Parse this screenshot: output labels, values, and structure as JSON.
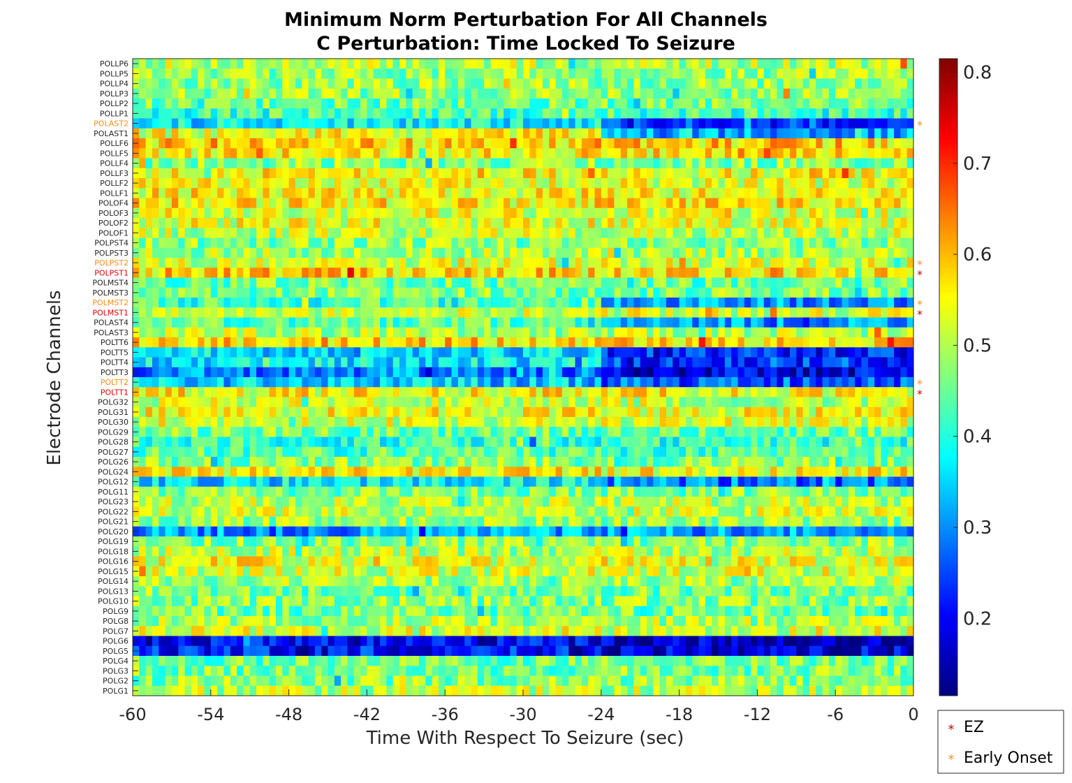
{
  "chart_data": {
    "type": "heatmap",
    "title": "Minimum Norm Perturbation For All Channels",
    "subtitle": "C Perturbation: Time Locked To Seizure",
    "xlabel": "Time With Respect To Seizure (sec)",
    "ylabel": "Electrode Channels",
    "xlim": [
      -60,
      0
    ],
    "x_ticks": [
      "-60",
      "-54",
      "-48",
      "-42",
      "-36",
      "-30",
      "-24",
      "-18",
      "-12",
      "-6",
      "0"
    ],
    "time_bins": 120,
    "colormap": "jet",
    "color_range": [
      0.115,
      0.815
    ],
    "colorbar_ticks": [
      "0.2",
      "0.3",
      "0.4",
      "0.5",
      "0.6",
      "0.7",
      "0.8"
    ],
    "colorbar_tick_values": [
      0.2,
      0.3,
      0.4,
      0.5,
      0.6,
      0.7,
      0.8
    ],
    "channels": [
      {
        "name": "POLLP6",
        "base": 0.5,
        "group": "normal"
      },
      {
        "name": "POLLP5",
        "base": 0.48,
        "group": "normal"
      },
      {
        "name": "POLLP4",
        "base": 0.48,
        "group": "normal"
      },
      {
        "name": "POLLP3",
        "base": 0.48,
        "group": "normal"
      },
      {
        "name": "POLLP2",
        "base": 0.45,
        "group": "normal"
      },
      {
        "name": "POLLP1",
        "base": 0.42,
        "group": "normal"
      },
      {
        "name": "POLAST2",
        "base": 0.37,
        "late": 0.24,
        "group": "early"
      },
      {
        "name": "POLAST1",
        "base": 0.54,
        "late": 0.32,
        "group": "normal"
      },
      {
        "name": "POLLF6",
        "base": 0.58,
        "group": "normal"
      },
      {
        "name": "POLLF5",
        "base": 0.56,
        "group": "normal"
      },
      {
        "name": "POLLF4",
        "base": 0.47,
        "group": "normal"
      },
      {
        "name": "POLLF3",
        "base": 0.55,
        "group": "normal"
      },
      {
        "name": "POLLF2",
        "base": 0.53,
        "group": "normal"
      },
      {
        "name": "POLLF1",
        "base": 0.55,
        "group": "normal"
      },
      {
        "name": "POLOF4",
        "base": 0.56,
        "group": "normal"
      },
      {
        "name": "POLOF3",
        "base": 0.53,
        "group": "normal"
      },
      {
        "name": "POLOF2",
        "base": 0.53,
        "group": "normal"
      },
      {
        "name": "POLOF1",
        "base": 0.51,
        "group": "normal"
      },
      {
        "name": "POLPST4",
        "base": 0.47,
        "group": "normal"
      },
      {
        "name": "POLPST3",
        "base": 0.49,
        "group": "normal"
      },
      {
        "name": "POLPST2",
        "base": 0.52,
        "group": "early"
      },
      {
        "name": "POLPST1",
        "base": 0.58,
        "group": "ez"
      },
      {
        "name": "POLMST4",
        "base": 0.45,
        "group": "normal"
      },
      {
        "name": "POLMST3",
        "base": 0.46,
        "group": "normal"
      },
      {
        "name": "POLMST2",
        "base": 0.42,
        "late": 0.31,
        "group": "early"
      },
      {
        "name": "POLMST1",
        "base": 0.52,
        "group": "ez"
      },
      {
        "name": "POLAST4",
        "base": 0.43,
        "late": 0.3,
        "group": "normal"
      },
      {
        "name": "POLAST3",
        "base": 0.5,
        "group": "normal"
      },
      {
        "name": "POLTT6",
        "base": 0.58,
        "group": "normal"
      },
      {
        "name": "POLTT5",
        "base": 0.35,
        "late": 0.22,
        "group": "normal"
      },
      {
        "name": "POLTT4",
        "base": 0.37,
        "late": 0.24,
        "group": "normal"
      },
      {
        "name": "POLTT3",
        "base": 0.29,
        "late": 0.18,
        "group": "normal"
      },
      {
        "name": "POLTT2",
        "base": 0.34,
        "late": 0.26,
        "group": "early"
      },
      {
        "name": "POLTT1",
        "base": 0.55,
        "group": "ez"
      },
      {
        "name": "POLG32",
        "base": 0.51,
        "group": "normal"
      },
      {
        "name": "POLG31",
        "base": 0.54,
        "group": "normal"
      },
      {
        "name": "POLG30",
        "base": 0.52,
        "group": "normal"
      },
      {
        "name": "POLG29",
        "base": 0.45,
        "group": "normal"
      },
      {
        "name": "POLG28",
        "base": 0.41,
        "group": "normal"
      },
      {
        "name": "POLG27",
        "base": 0.43,
        "group": "normal"
      },
      {
        "name": "POLG26",
        "base": 0.47,
        "group": "normal"
      },
      {
        "name": "POLG24",
        "base": 0.55,
        "group": "normal"
      },
      {
        "name": "POLG12",
        "base": 0.36,
        "late": 0.28,
        "group": "normal"
      },
      {
        "name": "POLG11",
        "base": 0.46,
        "group": "normal"
      },
      {
        "name": "POLG23",
        "base": 0.5,
        "group": "normal"
      },
      {
        "name": "POLG22",
        "base": 0.51,
        "group": "normal"
      },
      {
        "name": "POLG21",
        "base": 0.48,
        "group": "normal"
      },
      {
        "name": "POLG20",
        "base": 0.31,
        "group": "normal"
      },
      {
        "name": "POLG19",
        "base": 0.47,
        "group": "normal"
      },
      {
        "name": "POLG18",
        "base": 0.5,
        "group": "normal"
      },
      {
        "name": "POLG16",
        "base": 0.54,
        "group": "normal"
      },
      {
        "name": "POLG15",
        "base": 0.52,
        "group": "normal"
      },
      {
        "name": "POLG14",
        "base": 0.49,
        "group": "normal"
      },
      {
        "name": "POLG13",
        "base": 0.45,
        "group": "normal"
      },
      {
        "name": "POLG10",
        "base": 0.47,
        "group": "normal"
      },
      {
        "name": "POLG9",
        "base": 0.45,
        "group": "normal"
      },
      {
        "name": "POLG8",
        "base": 0.49,
        "group": "normal"
      },
      {
        "name": "POLG7",
        "base": 0.52,
        "group": "normal"
      },
      {
        "name": "POLG6",
        "base": 0.2,
        "late": 0.17,
        "group": "normal"
      },
      {
        "name": "POLG5",
        "base": 0.21,
        "late": 0.18,
        "group": "normal"
      },
      {
        "name": "POLG4",
        "base": 0.45,
        "group": "normal"
      },
      {
        "name": "POLG3",
        "base": 0.46,
        "group": "normal"
      },
      {
        "name": "POLG2",
        "base": 0.47,
        "group": "normal"
      },
      {
        "name": "POLG1",
        "base": 0.5,
        "group": "normal"
      }
    ],
    "legend": {
      "position": "bottom-right",
      "entries": [
        {
          "label": "EZ",
          "marker": "*",
          "color": "#cc0000"
        },
        {
          "label": "Early Onset",
          "marker": "*",
          "color": "#ff8c1a"
        }
      ]
    }
  },
  "colors": {
    "ez": "#e60000",
    "early": "#ff8c1a",
    "normal": "#262626"
  }
}
